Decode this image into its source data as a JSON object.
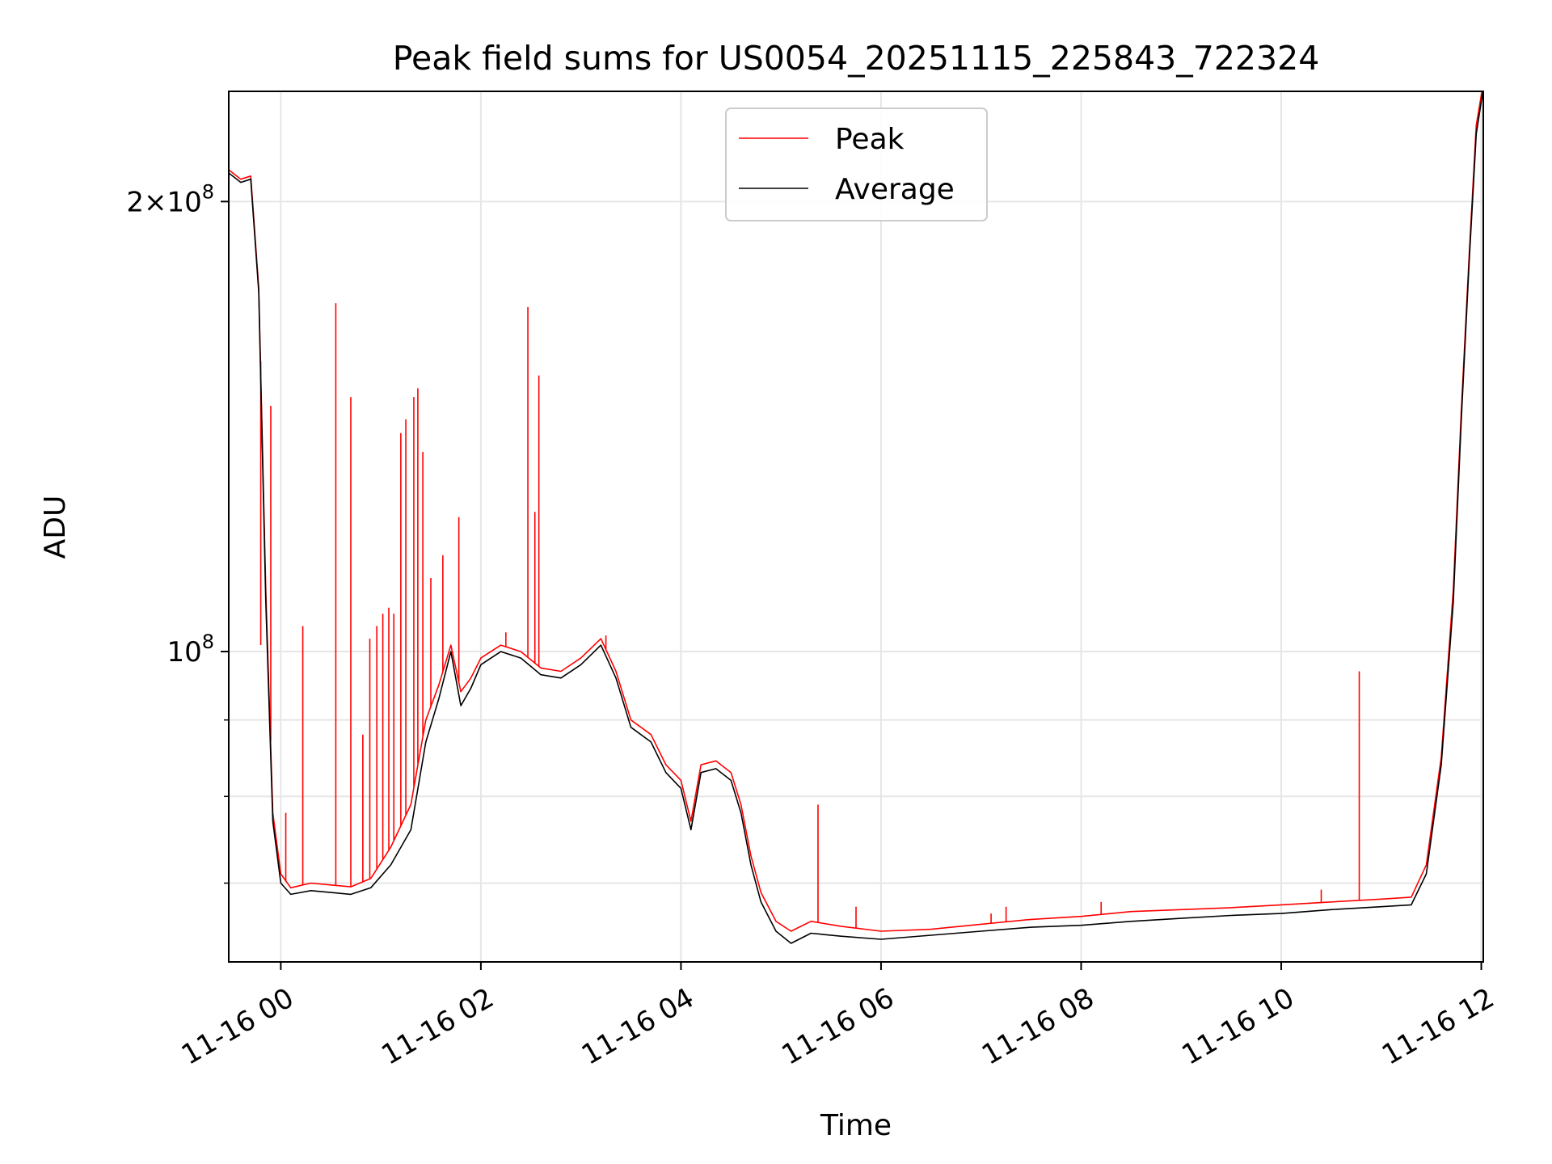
{
  "chart_data": {
    "type": "line",
    "title": "Peak field sums for US0054_20251115_225843_722324",
    "xlabel": "Time",
    "ylabel": "ADU",
    "yscale": "log",
    "xlim_hours": [
      -0.52,
      12.02
    ],
    "ylim": [
      62000000,
      237000000
    ],
    "grid": true,
    "legend_location": "upper center",
    "x_ticks": [
      {
        "value": 0,
        "label": "11-16 00"
      },
      {
        "value": 2,
        "label": "11-16 02"
      },
      {
        "value": 4,
        "label": "11-16 04"
      },
      {
        "value": 6,
        "label": "11-16 06"
      },
      {
        "value": 8,
        "label": "11-16 08"
      },
      {
        "value": 10,
        "label": "11-16 10"
      },
      {
        "value": 12,
        "label": "11-16 12"
      }
    ],
    "y_major_ticks": [
      {
        "value": 100000000,
        "label": "10",
        "exp": "8",
        "prefix": ""
      },
      {
        "value": 200000000,
        "label": "10",
        "exp": "8",
        "prefix": "2×"
      }
    ],
    "y_minor_ticks": [
      70000000,
      80000000,
      90000000
    ],
    "series": [
      {
        "name": "Peak",
        "color": "#ff0000",
        "x": [
          -0.52,
          -0.4,
          -0.3,
          -0.22,
          -0.15,
          -0.08,
          -0.0,
          0.1,
          0.3,
          0.5,
          0.7,
          0.9,
          1.1,
          1.3,
          1.45,
          1.58,
          1.7,
          1.8,
          1.9,
          2.0,
          2.2,
          2.4,
          2.6,
          2.8,
          3.0,
          3.2,
          3.35,
          3.5,
          3.7,
          3.85,
          4.0,
          4.1,
          4.2,
          4.35,
          4.5,
          4.6,
          4.7,
          4.8,
          4.95,
          5.1,
          5.3,
          5.6,
          6.0,
          6.5,
          7.0,
          7.5,
          8.0,
          8.5,
          9.0,
          9.5,
          10.0,
          10.5,
          11.0,
          11.3,
          11.45,
          11.6,
          11.72,
          11.8,
          11.88,
          11.95,
          12.02
        ],
        "y": [
          210000000,
          207000000,
          208000000,
          175000000,
          110000000,
          78000000,
          71000000,
          69500000,
          70000000,
          69800000,
          69600000,
          70500000,
          74000000,
          79000000,
          90000000,
          95000000,
          101000000,
          94000000,
          96000000,
          99000000,
          101000000,
          100000000,
          97500000,
          97000000,
          99000000,
          102000000,
          97000000,
          90000000,
          88000000,
          84000000,
          82000000,
          77000000,
          84000000,
          84500000,
          83000000,
          79000000,
          73000000,
          69000000,
          66000000,
          65000000,
          66000000,
          65500000,
          65000000,
          65200000,
          65700000,
          66200000,
          66500000,
          67000000,
          67200000,
          67400000,
          67700000,
          68000000,
          68300000,
          68500000,
          72000000,
          85000000,
          110000000,
          145000000,
          185000000,
          225000000,
          240000000
        ],
        "spikes": [
          {
            "x": -0.2,
            "y": 101000000
          },
          {
            "x": -0.1,
            "y": 146000000
          },
          {
            "x": 0.05,
            "y": 78000000
          },
          {
            "x": 0.22,
            "y": 104000000
          },
          {
            "x": 0.55,
            "y": 171000000
          },
          {
            "x": 0.7,
            "y": 148000000
          },
          {
            "x": 0.82,
            "y": 88000000
          },
          {
            "x": 0.89,
            "y": 102000000
          },
          {
            "x": 0.96,
            "y": 104000000
          },
          {
            "x": 1.02,
            "y": 106000000
          },
          {
            "x": 1.08,
            "y": 107000000
          },
          {
            "x": 1.13,
            "y": 106000000
          },
          {
            "x": 1.2,
            "y": 140000000
          },
          {
            "x": 1.25,
            "y": 143000000
          },
          {
            "x": 1.33,
            "y": 148000000
          },
          {
            "x": 1.37,
            "y": 150000000
          },
          {
            "x": 1.42,
            "y": 136000000
          },
          {
            "x": 1.5,
            "y": 112000000
          },
          {
            "x": 1.62,
            "y": 116000000
          },
          {
            "x": 1.78,
            "y": 123000000
          },
          {
            "x": 2.25,
            "y": 103000000
          },
          {
            "x": 2.47,
            "y": 170000000
          },
          {
            "x": 2.54,
            "y": 124000000
          },
          {
            "x": 2.58,
            "y": 153000000
          },
          {
            "x": 3.25,
            "y": 102500000
          },
          {
            "x": 5.37,
            "y": 79000000
          },
          {
            "x": 5.75,
            "y": 67500000
          },
          {
            "x": 7.1,
            "y": 66800000
          },
          {
            "x": 7.25,
            "y": 67500000
          },
          {
            "x": 8.2,
            "y": 68000000
          },
          {
            "x": 10.4,
            "y": 69300000
          },
          {
            "x": 10.78,
            "y": 97000000
          }
        ]
      },
      {
        "name": "Average",
        "color": "#000000",
        "x": [
          -0.52,
          -0.4,
          -0.3,
          -0.22,
          -0.15,
          -0.08,
          -0.0,
          0.1,
          0.3,
          0.5,
          0.7,
          0.9,
          1.1,
          1.3,
          1.45,
          1.58,
          1.7,
          1.8,
          1.9,
          2.0,
          2.2,
          2.4,
          2.6,
          2.8,
          3.0,
          3.2,
          3.35,
          3.5,
          3.7,
          3.85,
          4.0,
          4.1,
          4.2,
          4.35,
          4.5,
          4.6,
          4.7,
          4.8,
          4.95,
          5.1,
          5.3,
          5.6,
          6.0,
          6.5,
          7.0,
          7.5,
          8.0,
          8.5,
          9.0,
          9.5,
          10.0,
          10.5,
          11.0,
          11.3,
          11.45,
          11.6,
          11.72,
          11.8,
          11.88,
          11.95,
          12.02
        ],
        "y": [
          209000000,
          206000000,
          207000000,
          174000000,
          108000000,
          77000000,
          70000000,
          68800000,
          69200000,
          69000000,
          68800000,
          69500000,
          72000000,
          76000000,
          87000000,
          93000000,
          100000000,
          92000000,
          94500000,
          98000000,
          100000000,
          99000000,
          96500000,
          96000000,
          98000000,
          101000000,
          96000000,
          89000000,
          87000000,
          83000000,
          81000000,
          76000000,
          83000000,
          83500000,
          82000000,
          78000000,
          72000000,
          68000000,
          65000000,
          63800000,
          64800000,
          64500000,
          64200000,
          64600000,
          65000000,
          65400000,
          65600000,
          66000000,
          66300000,
          66600000,
          66800000,
          67200000,
          67500000,
          67700000,
          71000000,
          84000000,
          108000000,
          143000000,
          183000000,
          222000000,
          238000000
        ]
      }
    ]
  }
}
